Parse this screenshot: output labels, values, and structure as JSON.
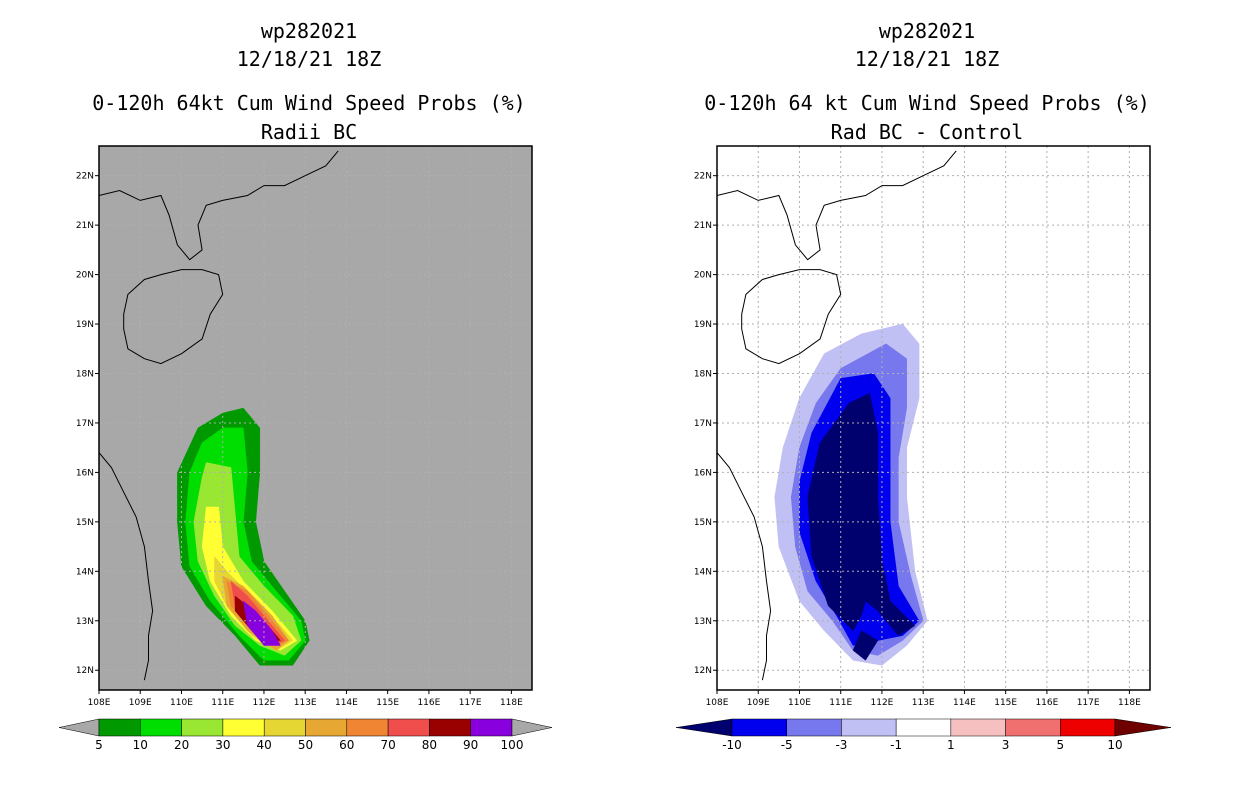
{
  "chart_data": [
    {
      "type": "heatmap",
      "storm_id": "wp282021",
      "datetime": "12/18/21 18Z",
      "title": "0-120h 64kt Cum Wind Speed Probs (%)",
      "subtitle": "Radii BC",
      "xlabel": "",
      "ylabel": "",
      "xlim": [
        108,
        118.5
      ],
      "ylim": [
        11.6,
        22.6
      ],
      "x_ticks": [
        "108E",
        "109E",
        "110E",
        "111E",
        "112E",
        "113E",
        "114E",
        "115E",
        "116E",
        "117E",
        "118E"
      ],
      "y_ticks": [
        "12N",
        "13N",
        "14N",
        "15N",
        "16N",
        "17N",
        "18N",
        "19N",
        "20N",
        "21N",
        "22N"
      ],
      "grid": true,
      "background": "#a8a8a8",
      "colorbar": {
        "labels": [
          "5",
          "10",
          "20",
          "30",
          "40",
          "50",
          "60",
          "70",
          "80",
          "90",
          "100"
        ],
        "colors": [
          "#009900",
          "#00dd00",
          "#99e633",
          "#ffff33",
          "#e6d633",
          "#e6a833",
          "#f08533",
          "#f04d4d",
          "#990000",
          "#8800dd"
        ],
        "over": "#a8a8a8",
        "under": "#a8a8a8"
      },
      "contours": [
        {
          "level": 5,
          "color": "#009900",
          "points": [
            [
              111.0,
              17.2
            ],
            [
              111.5,
              17.3
            ],
            [
              111.9,
              16.9
            ],
            [
              111.9,
              16.0
            ],
            [
              111.8,
              15.0
            ],
            [
              112.0,
              14.2
            ],
            [
              112.5,
              13.6
            ],
            [
              113.0,
              13.0
            ],
            [
              113.1,
              12.6
            ],
            [
              112.7,
              12.1
            ],
            [
              111.9,
              12.1
            ],
            [
              111.3,
              12.7
            ],
            [
              110.6,
              13.3
            ],
            [
              110.0,
              14.1
            ],
            [
              109.9,
              15.0
            ],
            [
              109.9,
              16.0
            ],
            [
              110.4,
              16.9
            ]
          ]
        },
        {
          "level": 10,
          "color": "#00dd00",
          "points": [
            [
              111.0,
              16.9
            ],
            [
              111.5,
              16.9
            ],
            [
              111.6,
              16.0
            ],
            [
              111.5,
              15.0
            ],
            [
              111.7,
              14.2
            ],
            [
              112.3,
              13.6
            ],
            [
              112.9,
              13.0
            ],
            [
              113.0,
              12.6
            ],
            [
              112.6,
              12.2
            ],
            [
              112.0,
              12.2
            ],
            [
              111.4,
              12.7
            ],
            [
              110.7,
              13.4
            ],
            [
              110.2,
              14.1
            ],
            [
              110.1,
              15.0
            ],
            [
              110.2,
              16.0
            ],
            [
              110.5,
              16.6
            ]
          ]
        },
        {
          "level": 20,
          "color": "#99e633",
          "points": [
            [
              110.6,
              16.2
            ],
            [
              111.2,
              16.1
            ],
            [
              111.3,
              15.2
            ],
            [
              111.4,
              14.3
            ],
            [
              112.0,
              13.7
            ],
            [
              112.7,
              13.1
            ],
            [
              112.9,
              12.6
            ],
            [
              112.5,
              12.3
            ],
            [
              111.9,
              12.5
            ],
            [
              111.3,
              12.9
            ],
            [
              110.8,
              13.5
            ],
            [
              110.4,
              14.2
            ],
            [
              110.3,
              15.0
            ],
            [
              110.5,
              15.9
            ]
          ]
        },
        {
          "level": 30,
          "color": "#ffff33",
          "points": [
            [
              110.6,
              15.3
            ],
            [
              110.9,
              15.3
            ],
            [
              111.0,
              14.5
            ],
            [
              111.5,
              13.8
            ],
            [
              112.2,
              13.2
            ],
            [
              112.8,
              12.6
            ],
            [
              112.4,
              12.4
            ],
            [
              111.8,
              12.6
            ],
            [
              111.2,
              13.1
            ],
            [
              110.7,
              13.8
            ],
            [
              110.5,
              14.5
            ]
          ]
        },
        {
          "level": 40,
          "color": "#e6d633",
          "points": [
            [
              110.8,
              14.3
            ],
            [
              111.1,
              14.0
            ],
            [
              111.7,
              13.5
            ],
            [
              112.4,
              12.9
            ],
            [
              112.7,
              12.6
            ],
            [
              112.3,
              12.4
            ],
            [
              111.7,
              12.7
            ],
            [
              111.1,
              13.3
            ],
            [
              110.8,
              13.8
            ]
          ]
        },
        {
          "level": 50,
          "color": "#e6a833",
          "points": [
            [
              111.0,
              13.9
            ],
            [
              111.5,
              13.7
            ],
            [
              112.2,
              13.1
            ],
            [
              112.6,
              12.6
            ],
            [
              112.3,
              12.4
            ],
            [
              111.6,
              12.8
            ],
            [
              111.1,
              13.3
            ]
          ]
        },
        {
          "level": 60,
          "color": "#f08533",
          "points": [
            [
              111.1,
              13.8
            ],
            [
              111.6,
              13.6
            ],
            [
              112.2,
              13.0
            ],
            [
              112.6,
              12.6
            ],
            [
              112.3,
              12.5
            ],
            [
              111.7,
              12.9
            ],
            [
              111.2,
              13.3
            ]
          ]
        },
        {
          "level": 70,
          "color": "#f04d4d",
          "points": [
            [
              111.2,
              13.8
            ],
            [
              111.6,
              13.5
            ],
            [
              112.2,
              12.9
            ],
            [
              112.5,
              12.6
            ],
            [
              112.2,
              12.5
            ],
            [
              111.7,
              12.9
            ],
            [
              111.3,
              13.3
            ]
          ]
        },
        {
          "level": 80,
          "color": "#990000",
          "points": [
            [
              111.3,
              13.5
            ],
            [
              111.6,
              13.3
            ],
            [
              112.1,
              12.9
            ],
            [
              112.4,
              12.6
            ],
            [
              112.1,
              12.6
            ],
            [
              111.7,
              12.8
            ],
            [
              111.3,
              13.2
            ]
          ]
        },
        {
          "level": 90,
          "color": "#8800dd",
          "points": [
            [
              111.5,
              13.4
            ],
            [
              111.8,
              13.2
            ],
            [
              112.2,
              12.8
            ],
            [
              112.4,
              12.5
            ],
            [
              112.0,
              12.5
            ],
            [
              111.6,
              12.9
            ]
          ]
        }
      ]
    },
    {
      "type": "heatmap",
      "storm_id": "wp282021",
      "datetime": "12/18/21 18Z",
      "title": "0-120h 64 kt Cum Wind Speed Probs (%)",
      "subtitle": "Rad BC - Control",
      "xlabel": "",
      "ylabel": "",
      "xlim": [
        108,
        118.5
      ],
      "ylim": [
        11.6,
        22.6
      ],
      "x_ticks": [
        "108E",
        "109E",
        "110E",
        "111E",
        "112E",
        "113E",
        "114E",
        "115E",
        "116E",
        "117E",
        "118E"
      ],
      "y_ticks": [
        "12N",
        "13N",
        "14N",
        "15N",
        "16N",
        "17N",
        "18N",
        "19N",
        "20N",
        "21N",
        "22N"
      ],
      "grid": true,
      "background": "#ffffff",
      "colorbar": {
        "labels": [
          "-10",
          "-5",
          "-3",
          "-1",
          "1",
          "3",
          "5",
          "10"
        ],
        "colors": [
          "#0000ee",
          "#7777ee",
          "#c0c0f4",
          "#ffffff",
          "#f7c0c0",
          "#f07070",
          "#ee0000"
        ],
        "under": "#00006e",
        "over": "#6e0000"
      },
      "contours": [
        {
          "level": -1,
          "color": "#c0c0f4",
          "points": [
            [
              111.5,
              18.8
            ],
            [
              112.5,
              19.0
            ],
            [
              112.9,
              18.6
            ],
            [
              112.9,
              17.5
            ],
            [
              112.6,
              16.5
            ],
            [
              112.6,
              15.5
            ],
            [
              112.8,
              14.0
            ],
            [
              113.1,
              13.0
            ],
            [
              112.6,
              12.5
            ],
            [
              112.0,
              12.1
            ],
            [
              111.3,
              12.2
            ],
            [
              110.6,
              12.8
            ],
            [
              110.0,
              13.4
            ],
            [
              109.5,
              14.5
            ],
            [
              109.4,
              15.5
            ],
            [
              109.6,
              16.5
            ],
            [
              110.0,
              17.5
            ],
            [
              110.6,
              18.4
            ]
          ]
        },
        {
          "level": -3,
          "color": "#7777ee",
          "points": [
            [
              111.0,
              18.1
            ],
            [
              112.1,
              18.6
            ],
            [
              112.6,
              18.3
            ],
            [
              112.6,
              17.3
            ],
            [
              112.4,
              16.3
            ],
            [
              112.4,
              15.0
            ],
            [
              112.7,
              13.9
            ],
            [
              113.0,
              13.0
            ],
            [
              112.5,
              12.6
            ],
            [
              111.9,
              12.3
            ],
            [
              111.3,
              12.4
            ],
            [
              110.8,
              13.0
            ],
            [
              110.2,
              13.6
            ],
            [
              109.9,
              14.5
            ],
            [
              109.8,
              15.5
            ],
            [
              110.0,
              16.5
            ],
            [
              110.4,
              17.4
            ]
          ]
        },
        {
          "level": -5,
          "color": "#0000ee",
          "points": [
            [
              111.0,
              17.9
            ],
            [
              111.8,
              18.0
            ],
            [
              112.2,
              17.5
            ],
            [
              112.2,
              16.3
            ],
            [
              112.2,
              15.0
            ],
            [
              112.4,
              13.7
            ],
            [
              112.9,
              13.0
            ],
            [
              112.5,
              12.7
            ],
            [
              111.9,
              12.6
            ],
            [
              111.3,
              12.5
            ],
            [
              110.9,
              13.1
            ],
            [
              110.4,
              13.8
            ],
            [
              110.0,
              14.8
            ],
            [
              110.0,
              15.8
            ],
            [
              110.3,
              16.8
            ]
          ]
        },
        {
          "level": -10,
          "color": "#00006e",
          "points": [
            [
              111.2,
              17.4
            ],
            [
              111.7,
              17.6
            ],
            [
              111.9,
              16.8
            ],
            [
              111.9,
              15.5
            ],
            [
              112.0,
              14.2
            ],
            [
              112.2,
              13.4
            ],
            [
              112.8,
              12.9
            ],
            [
              112.4,
              12.7
            ],
            [
              111.9,
              13.2
            ],
            [
              111.6,
              13.4
            ],
            [
              111.5,
              13.1
            ],
            [
              111.3,
              12.8
            ],
            [
              110.7,
              13.3
            ],
            [
              110.3,
              14.3
            ],
            [
              110.2,
              15.5
            ],
            [
              110.5,
              16.6
            ]
          ]
        },
        {
          "level": -10,
          "color": "#00006e",
          "points": [
            [
              111.5,
              12.8
            ],
            [
              111.9,
              12.6
            ],
            [
              111.6,
              12.2
            ],
            [
              111.3,
              12.4
            ]
          ]
        }
      ]
    }
  ]
}
